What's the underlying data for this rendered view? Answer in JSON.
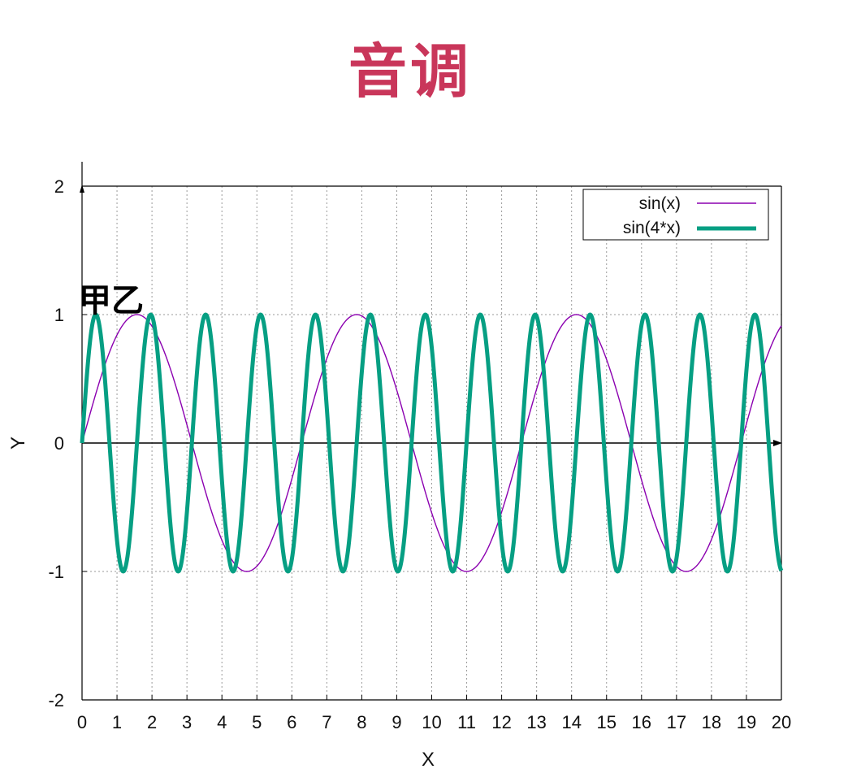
{
  "page": {
    "title": "音调"
  },
  "chart_data": {
    "type": "line",
    "title": "",
    "xlabel": "X",
    "ylabel": "Y",
    "xlim": [
      0,
      20
    ],
    "ylim": [
      -2,
      2
    ],
    "x_ticks": [
      "0",
      "1",
      "2",
      "3",
      "4",
      "5",
      "6",
      "7",
      "8",
      "9",
      "10",
      "11",
      "12",
      "13",
      "14",
      "15",
      "16",
      "17",
      "18",
      "19",
      "20"
    ],
    "y_ticks": [
      "2",
      "1",
      "0",
      "-1",
      "-2"
    ],
    "grid": true,
    "legend_position": "top-right",
    "annotation": "甲乙",
    "series": [
      {
        "name": "sin(x)",
        "function": "sin(x)",
        "frequency": 1,
        "color": "#8b00b0"
      },
      {
        "name": "sin(4*x)",
        "function": "sin(4*x)",
        "frequency": 4,
        "color": "#069f83"
      }
    ],
    "colors": {
      "title": "#c9365a",
      "grid": "#9a9a9a",
      "axis": "#000000"
    }
  }
}
